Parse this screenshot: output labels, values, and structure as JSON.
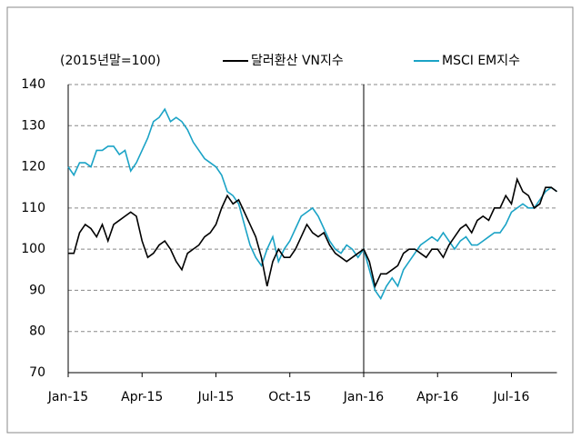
{
  "chart_data": {
    "type": "line",
    "annotation": "(2015년말=100)",
    "categories": [
      "Jan-15",
      null,
      null,
      null,
      null,
      null,
      null,
      null,
      null,
      null,
      null,
      null,
      null,
      "Apr-15",
      null,
      null,
      null,
      null,
      null,
      null,
      null,
      null,
      null,
      null,
      null,
      null,
      "Jul-15",
      null,
      null,
      null,
      null,
      null,
      null,
      null,
      null,
      null,
      null,
      null,
      null,
      "Oct-15",
      null,
      null,
      null,
      null,
      null,
      null,
      null,
      null,
      null,
      null,
      null,
      null,
      "Jan-16",
      null,
      null,
      null,
      null,
      null,
      null,
      null,
      null,
      null,
      null,
      null,
      null,
      "Apr-16",
      null,
      null,
      null,
      null,
      null,
      null,
      null,
      null,
      null,
      null,
      null,
      null,
      "Jul-16",
      null,
      null,
      null,
      null,
      null,
      null,
      null,
      null
    ],
    "series": [
      {
        "name": "달러환산 VN지수",
        "color": "#000000",
        "values": [
          99,
          99,
          104,
          106,
          105,
          103,
          106,
          102,
          106,
          107,
          108,
          109,
          108,
          102,
          98,
          99,
          101,
          102,
          100,
          97,
          95,
          99,
          100,
          101,
          103,
          104,
          106,
          110,
          113,
          111,
          112,
          109,
          106,
          103,
          98,
          91,
          97,
          100,
          98,
          98,
          100,
          103,
          106,
          104,
          103,
          104,
          101,
          99,
          98,
          97,
          98,
          99,
          100,
          97,
          91,
          94,
          94,
          95,
          96,
          99,
          100,
          100,
          99,
          98,
          100,
          100,
          98,
          101,
          103,
          105,
          106,
          104,
          107,
          108,
          107,
          110,
          110,
          113,
          111,
          117,
          114,
          113,
          110,
          111,
          115,
          115,
          114
        ]
      },
      {
        "name": "MSCI EM지수",
        "color": "#1ba3c6",
        "values": [
          120,
          118,
          121,
          121,
          120,
          124,
          124,
          125,
          125,
          123,
          124,
          119,
          121,
          124,
          127,
          131,
          132,
          134,
          131,
          132,
          131,
          129,
          126,
          124,
          122,
          121,
          120,
          118,
          114,
          113,
          111,
          106,
          101,
          98,
          96,
          100,
          103,
          97,
          100,
          102,
          105,
          108,
          109,
          110,
          108,
          105,
          102,
          100,
          99,
          101,
          100,
          98,
          100,
          95,
          90,
          88,
          91,
          93,
          91,
          95,
          97,
          99,
          101,
          102,
          103,
          102,
          104,
          102,
          100,
          102,
          103,
          101,
          101,
          102,
          103,
          104,
          104,
          106,
          109,
          110,
          111,
          110,
          110,
          112,
          114,
          115,
          114
        ]
      }
    ],
    "ylim": [
      70,
      140
    ],
    "yticks": [
      70,
      80,
      90,
      100,
      110,
      120,
      130,
      140
    ],
    "grid": true,
    "legend": "top"
  }
}
